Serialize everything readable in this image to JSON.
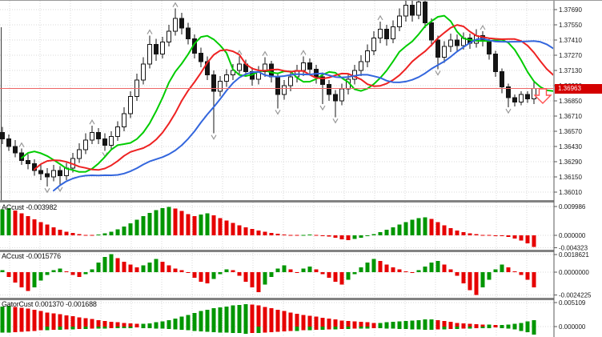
{
  "ui": {
    "current_price_label": "1.36963"
  },
  "colors": {
    "background": "#ffffff",
    "grid": "#d9d9d9",
    "separator": "#828282",
    "axis_line": "#5a5a5a",
    "axis_text": "#1a1a1a",
    "candle_up_fill": "#ffffff",
    "candle_down_fill": "#151515",
    "candle_border": "#151515",
    "alligator_jaw_blue": "#3366dd",
    "alligator_teeth_red": "#ee2222",
    "alligator_lips_green": "#00cc00",
    "hist_up_green": "#009600",
    "hist_down_red": "#e60000",
    "price_line": "#ee6666",
    "price_box": "#d40000",
    "fractal_gray": "#999999",
    "signal_arrow_red": "#ff5050"
  },
  "chart_data": {
    "type": "candlestick",
    "title": "",
    "platform_style": "MetaTrader forex chart with Alligator overlay, fractal arrows and three oscillator subwindows",
    "price_axis": {
      "labels": [
        "1.37690",
        "1.37550",
        "1.37410",
        "1.37270",
        "1.37130",
        "1.36990",
        "1.36850",
        "1.36710",
        "1.36570",
        "1.36430",
        "1.36290",
        "1.36150",
        "1.36010"
      ],
      "tick_step": 0.0014,
      "current_price": 1.36963
    },
    "candles_ohlc": [
      [
        1.3656,
        1.3661,
        1.3645,
        1.365
      ],
      [
        1.365,
        1.3654,
        1.3639,
        1.3643
      ],
      [
        1.3643,
        1.3649,
        1.3633,
        1.3637
      ],
      [
        1.3637,
        1.3641,
        1.3626,
        1.363
      ],
      [
        1.363,
        1.3636,
        1.3622,
        1.3627
      ],
      [
        1.3627,
        1.3631,
        1.3616,
        1.3621
      ],
      [
        1.3621,
        1.3626,
        1.3612,
        1.3618
      ],
      [
        1.3618,
        1.3623,
        1.3606,
        1.3615
      ],
      [
        1.3615,
        1.3626,
        1.3611,
        1.3621
      ],
      [
        1.3621,
        1.3625,
        1.3607,
        1.3616
      ],
      [
        1.3616,
        1.3628,
        1.3612,
        1.3623
      ],
      [
        1.3623,
        1.3637,
        1.3619,
        1.3632
      ],
      [
        1.3632,
        1.3646,
        1.3628,
        1.364
      ],
      [
        1.364,
        1.3655,
        1.3636,
        1.3649
      ],
      [
        1.3649,
        1.3662,
        1.3645,
        1.3656
      ],
      [
        1.3656,
        1.366,
        1.3645,
        1.365
      ],
      [
        1.365,
        1.3655,
        1.3639,
        1.3644
      ],
      [
        1.3644,
        1.3657,
        1.364,
        1.3652
      ],
      [
        1.3652,
        1.3666,
        1.3648,
        1.3661
      ],
      [
        1.3661,
        1.3679,
        1.3657,
        1.3673
      ],
      [
        1.3673,
        1.3694,
        1.3669,
        1.3689
      ],
      [
        1.3689,
        1.371,
        1.3685,
        1.3704
      ],
      [
        1.3704,
        1.3725,
        1.37,
        1.3719
      ],
      [
        1.3719,
        1.3745,
        1.3715,
        1.3737
      ],
      [
        1.3737,
        1.3742,
        1.3722,
        1.3728
      ],
      [
        1.3728,
        1.3744,
        1.3724,
        1.3739
      ],
      [
        1.3739,
        1.3755,
        1.3735,
        1.3749
      ],
      [
        1.3749,
        1.377,
        1.3745,
        1.3761
      ],
      [
        1.3761,
        1.3766,
        1.3746,
        1.3752
      ],
      [
        1.3752,
        1.3757,
        1.3737,
        1.3742
      ],
      [
        1.3742,
        1.3746,
        1.3724,
        1.3729
      ],
      [
        1.3729,
        1.3734,
        1.3716,
        1.3721
      ],
      [
        1.3721,
        1.3726,
        1.3704,
        1.3709
      ],
      [
        1.3709,
        1.3713,
        1.3655,
        1.3694
      ],
      [
        1.3694,
        1.3708,
        1.3689,
        1.3703
      ],
      [
        1.3703,
        1.3714,
        1.3698,
        1.3709
      ],
      [
        1.3709,
        1.3719,
        1.3704,
        1.3713
      ],
      [
        1.3713,
        1.3726,
        1.3709,
        1.3719
      ],
      [
        1.3719,
        1.3723,
        1.3707,
        1.3712
      ],
      [
        1.3712,
        1.3716,
        1.3699,
        1.3705
      ],
      [
        1.3705,
        1.3717,
        1.37,
        1.3712
      ],
      [
        1.3712,
        1.3725,
        1.3707,
        1.3719
      ],
      [
        1.3719,
        1.3722,
        1.3702,
        1.3707
      ],
      [
        1.3707,
        1.3711,
        1.3678,
        1.3691
      ],
      [
        1.3691,
        1.3704,
        1.3686,
        1.3699
      ],
      [
        1.3699,
        1.3712,
        1.3694,
        1.3707
      ],
      [
        1.3707,
        1.3718,
        1.3702,
        1.3713
      ],
      [
        1.3713,
        1.3726,
        1.3708,
        1.372
      ],
      [
        1.372,
        1.3724,
        1.3709,
        1.3714
      ],
      [
        1.3714,
        1.3718,
        1.3701,
        1.3707
      ],
      [
        1.3707,
        1.3711,
        1.3682,
        1.37
      ],
      [
        1.37,
        1.3704,
        1.3685,
        1.3691
      ],
      [
        1.3691,
        1.3695,
        1.367,
        1.3685
      ],
      [
        1.3685,
        1.3701,
        1.3681,
        1.3696
      ],
      [
        1.3696,
        1.371,
        1.3691,
        1.3705
      ],
      [
        1.3705,
        1.3718,
        1.37,
        1.3713
      ],
      [
        1.3713,
        1.3727,
        1.3708,
        1.3721
      ],
      [
        1.3721,
        1.3737,
        1.3716,
        1.3731
      ],
      [
        1.3731,
        1.3749,
        1.3727,
        1.3743
      ],
      [
        1.3743,
        1.3758,
        1.3738,
        1.3751
      ],
      [
        1.3751,
        1.3755,
        1.3736,
        1.3742
      ],
      [
        1.3742,
        1.3759,
        1.3738,
        1.3753
      ],
      [
        1.3753,
        1.377,
        1.3749,
        1.3763
      ],
      [
        1.3763,
        1.3779,
        1.3758,
        1.3773
      ],
      [
        1.3773,
        1.3777,
        1.3758,
        1.3764
      ],
      [
        1.3764,
        1.3781,
        1.376,
        1.3776
      ],
      [
        1.3776,
        1.3779,
        1.3752,
        1.3757
      ],
      [
        1.3757,
        1.3761,
        1.3735,
        1.3741
      ],
      [
        1.3741,
        1.3745,
        1.3714,
        1.3725
      ],
      [
        1.3725,
        1.374,
        1.372,
        1.3735
      ],
      [
        1.3735,
        1.3747,
        1.373,
        1.3741
      ],
      [
        1.3741,
        1.3746,
        1.3731,
        1.3736
      ],
      [
        1.3736,
        1.3748,
        1.3732,
        1.3743
      ],
      [
        1.3743,
        1.3747,
        1.3733,
        1.3738
      ],
      [
        1.3738,
        1.3751,
        1.3734,
        1.3745
      ],
      [
        1.3745,
        1.3749,
        1.3735,
        1.374
      ],
      [
        1.374,
        1.3743,
        1.3723,
        1.3728
      ],
      [
        1.3728,
        1.3731,
        1.3707,
        1.3712
      ],
      [
        1.3712,
        1.3715,
        1.3692,
        1.3698
      ],
      [
        1.3698,
        1.3701,
        1.3679,
        1.3688
      ],
      [
        1.3688,
        1.3691,
        1.368,
        1.3684
      ],
      [
        1.3684,
        1.3694,
        1.3681,
        1.3691
      ],
      [
        1.3691,
        1.3694,
        1.3683,
        1.3687
      ],
      [
        1.3687,
        1.3703,
        1.3682,
        1.36963
      ]
    ],
    "alligator": {
      "jaw": {
        "period": 9,
        "shift": 8,
        "seed": 1.3596
      },
      "teeth": {
        "period": 5,
        "shift": 5,
        "seed": 1.3614
      },
      "lips": {
        "period": 3,
        "shift": 3,
        "seed": 1.3622
      }
    },
    "fractals_up": [
      3,
      14,
      23,
      27,
      37,
      41,
      47,
      59,
      63,
      65,
      75
    ],
    "fractals_down": [
      7,
      9,
      16,
      33,
      43,
      50,
      52,
      68,
      79
    ],
    "signal": {
      "type": "sell-arrow",
      "bar_index": 83
    },
    "indicator_windows": [
      {
        "name": "ACcust",
        "value_label": "-0.003982",
        "scale_labels": [
          "0.009986",
          "0.000000",
          "-0.004323"
        ],
        "values": [
          0.009,
          0.0094,
          0.0086,
          0.0076,
          0.0066,
          0.0056,
          0.0046,
          0.0037,
          0.0028,
          0.002,
          0.0013,
          0.0008,
          0.0004,
          0.0002,
          0.0001,
          0.0003,
          0.0007,
          0.0013,
          0.0021,
          0.0031,
          0.0042,
          0.0054,
          0.0066,
          0.0077,
          0.0087,
          0.0094,
          0.0099,
          0.0093,
          0.0084,
          0.0074,
          0.0066,
          0.0072,
          0.0076,
          0.0069,
          0.006,
          0.0051,
          0.0043,
          0.0035,
          0.0028,
          0.0022,
          0.0017,
          0.0012,
          0.0008,
          0.0005,
          0.0003,
          0.0002,
          0.0001,
          0.0002,
          0.0003,
          0.0002,
          -0.0001,
          -0.0004,
          -0.0009,
          -0.0014,
          -0.0017,
          -0.0013,
          -0.0008,
          -0.0002,
          0.0004,
          0.0011,
          0.0019,
          0.0028,
          0.0037,
          0.0046,
          0.0054,
          0.006,
          0.0063,
          0.0057,
          0.0046,
          0.0035,
          0.0025,
          0.0017,
          0.0011,
          0.0007,
          0.0004,
          0.0002,
          0.0001,
          -0.0001,
          -0.0003,
          -0.0006,
          -0.0011,
          -0.0018,
          -0.0028,
          -0.004
        ]
      },
      {
        "name": "ACcust",
        "value_label": "-0.0015776",
        "scale_labels": [
          "0.0018621",
          "0.0000000",
          "-0.0024225"
        ],
        "values": [
          0.0002,
          -0.0005,
          -0.0011,
          -0.0016,
          -0.002,
          -0.0016,
          -0.0009,
          -0.0003,
          0.0002,
          0.0004,
          0.0001,
          -0.0003,
          -0.0005,
          -0.0002,
          0.0003,
          0.001,
          0.0016,
          0.0019,
          0.0015,
          0.0011,
          0.0008,
          0.0005,
          0.0007,
          0.001,
          0.0014,
          0.0011,
          0.0007,
          0.0004,
          0.0002,
          -0.0001,
          -0.0006,
          -0.001,
          -0.0012,
          -0.0007,
          -0.0002,
          0.0003,
          0.0002,
          -0.0004,
          -0.001,
          -0.0016,
          -0.0021,
          -0.0013,
          -0.0005,
          0.0004,
          0.0007,
          0.0003,
          -0.0001,
          0.0004,
          0.0006,
          0.0003,
          -0.0002,
          -0.0006,
          -0.001,
          -0.0013,
          -0.0008,
          -0.0002,
          0.0005,
          0.001,
          0.0014,
          0.0012,
          0.0008,
          0.0005,
          0.0003,
          0.0001,
          -0.0001,
          0.0002,
          0.0006,
          0.001,
          0.0012,
          0.0008,
          0.0003,
          -0.0004,
          -0.0012,
          -0.0019,
          -0.0024,
          -0.0016,
          -0.0008,
          0.0003,
          0.0008,
          0.0005,
          0.0001,
          -0.0003,
          -0.0008,
          -0.0016
        ]
      },
      {
        "name": "GatorCust",
        "value_label": "0.001370 -0.001688",
        "scale_labels": [
          "0.005109",
          "0.000000"
        ],
        "upper": [
          0.0043,
          0.0044,
          0.0042,
          0.004,
          0.0038,
          0.0036,
          0.0033,
          0.003,
          0.0028,
          0.0026,
          0.0024,
          0.0022,
          0.002,
          0.0018,
          0.0016,
          0.0014,
          0.0012,
          0.001,
          0.0009,
          0.0008,
          0.0007,
          0.0006,
          0.0006,
          0.0007,
          0.0009,
          0.0011,
          0.0014,
          0.0017,
          0.0021,
          0.0025,
          0.0029,
          0.0033,
          0.0036,
          0.0039,
          0.0041,
          0.0043,
          0.0045,
          0.0046,
          0.0048,
          0.0047,
          0.0045,
          0.0042,
          0.0039,
          0.0036,
          0.0033,
          0.003,
          0.0027,
          0.0025,
          0.0023,
          0.0021,
          0.0019,
          0.0017,
          0.0015,
          0.0013,
          0.0012,
          0.0011,
          0.001,
          0.0009,
          0.0008,
          0.0008,
          0.0009,
          0.001,
          0.0011,
          0.0012,
          0.0013,
          0.0014,
          0.0015,
          0.0015,
          0.0014,
          0.0012,
          0.001,
          0.0008,
          0.0007,
          0.0006,
          0.0005,
          0.0004,
          0.0004,
          0.0003,
          0.0003,
          0.0004,
          0.0006,
          0.0008,
          0.0011,
          0.0014
        ],
        "lower": [
          -0.0013,
          -0.0013,
          -0.0012,
          -0.0011,
          -0.001,
          -0.0009,
          -0.0008,
          -0.0008,
          -0.0007,
          -0.0007,
          -0.0006,
          -0.0006,
          -0.0005,
          -0.0005,
          -0.0004,
          -0.0004,
          -0.0004,
          -0.0003,
          -0.0003,
          -0.0003,
          -0.0003,
          -0.0002,
          -0.0003,
          -0.0003,
          -0.0004,
          -0.0004,
          -0.0005,
          -0.0006,
          -0.0007,
          -0.0008,
          -0.0009,
          -0.001,
          -0.0011,
          -0.0012,
          -0.0013,
          -0.0013,
          -0.0014,
          -0.0014,
          -0.0015,
          -0.0014,
          -0.0014,
          -0.0013,
          -0.0012,
          -0.0011,
          -0.001,
          -0.0009,
          -0.0009,
          -0.0008,
          -0.0008,
          -0.0007,
          -0.0007,
          -0.0006,
          -0.0006,
          -0.0005,
          -0.0005,
          -0.0004,
          -0.0004,
          -0.0004,
          -0.0003,
          -0.0003,
          -0.0004,
          -0.0004,
          -0.0005,
          -0.0005,
          -0.0006,
          -0.0006,
          -0.0007,
          -0.0007,
          -0.0006,
          -0.0006,
          -0.0005,
          -0.0005,
          -0.0004,
          -0.0004,
          -0.0003,
          -0.0003,
          -0.0003,
          -0.0002,
          -0.0003,
          -0.0004,
          -0.0006,
          -0.0009,
          -0.0012,
          -0.0017
        ]
      }
    ]
  }
}
